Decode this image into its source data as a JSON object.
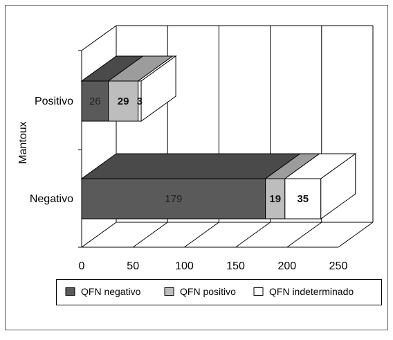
{
  "chart_data": {
    "type": "bar",
    "orientation": "horizontal",
    "stacked": true,
    "three_d": true,
    "categories": [
      "Negativo",
      "Positivo"
    ],
    "series": [
      {
        "name": "QFN negativo",
        "values": [
          179,
          26
        ],
        "color": "#5a5a5a",
        "top_color": "#4a4a4a",
        "side_color": "#3a3a3a",
        "label_color": "#222222",
        "label_bold": false
      },
      {
        "name": "QFN positivo",
        "values": [
          19,
          29
        ],
        "color": "#bdbdbd",
        "top_color": "#9c9c9c",
        "side_color": "#8a8a8a",
        "label_color": "#111111",
        "label_bold": true
      },
      {
        "name": "QFN indeterminado",
        "values": [
          35,
          3
        ],
        "color": "#ffffff",
        "top_color": "#ffffff",
        "side_color": "#ffffff",
        "label_color": "#111111",
        "label_bold": true
      }
    ],
    "ylabel": "Mantoux",
    "xlabel": "",
    "xlim": [
      0,
      250
    ],
    "xticks": [
      0,
      50,
      100,
      150,
      200,
      250
    ],
    "grid": true,
    "legend_position": "bottom"
  }
}
